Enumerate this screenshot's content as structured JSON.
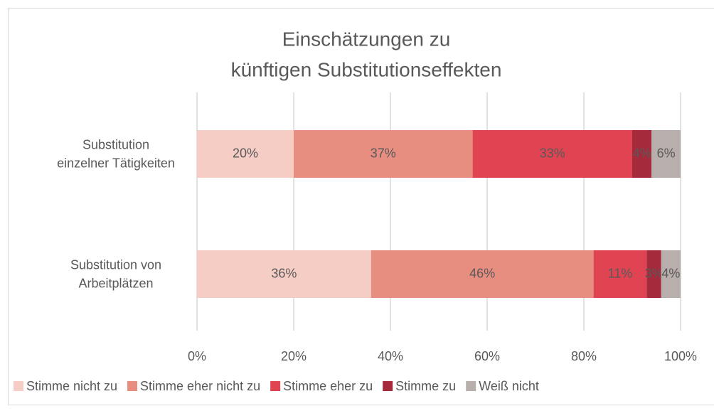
{
  "chart_data": {
    "type": "stacked-bar-horizontal",
    "title": [
      "Einschätzungen zu",
      "künftigen Substitutionseffekten"
    ],
    "categories": [
      [
        "Substitution",
        "einzelner Tätigkeiten"
      ],
      [
        "Substitution von",
        "Arbeitplätzen"
      ]
    ],
    "series": [
      {
        "name": "Stimme nicht zu",
        "color": "#f5cdc4",
        "values": [
          20,
          36
        ],
        "value_labels": [
          "20%",
          "36%"
        ]
      },
      {
        "name": "Stimme eher nicht zu",
        "color": "#e88e80",
        "values": [
          37,
          46
        ],
        "value_labels": [
          "37%",
          "46%"
        ]
      },
      {
        "name": "Stimme eher zu",
        "color": "#e04452",
        "values": [
          33,
          11
        ],
        "value_labels": [
          "33%",
          "11%"
        ]
      },
      {
        "name": "Stimme zu",
        "color": "#a52a3c",
        "values": [
          4,
          3
        ],
        "value_labels": [
          "4%",
          "3%"
        ]
      },
      {
        "name": "Weiß nicht",
        "color": "#b8aeab",
        "values": [
          6,
          4
        ],
        "value_labels": [
          "6%",
          "4%"
        ]
      }
    ],
    "xlim": [
      0,
      100
    ],
    "xticks": [
      {
        "value": 0,
        "label": "0%"
      },
      {
        "value": 20,
        "label": "20%"
      },
      {
        "value": 40,
        "label": "40%"
      },
      {
        "value": 60,
        "label": "60%"
      },
      {
        "value": 80,
        "label": "80%"
      },
      {
        "value": 100,
        "label": "100%"
      }
    ],
    "grid": true,
    "legend": "bottom"
  }
}
